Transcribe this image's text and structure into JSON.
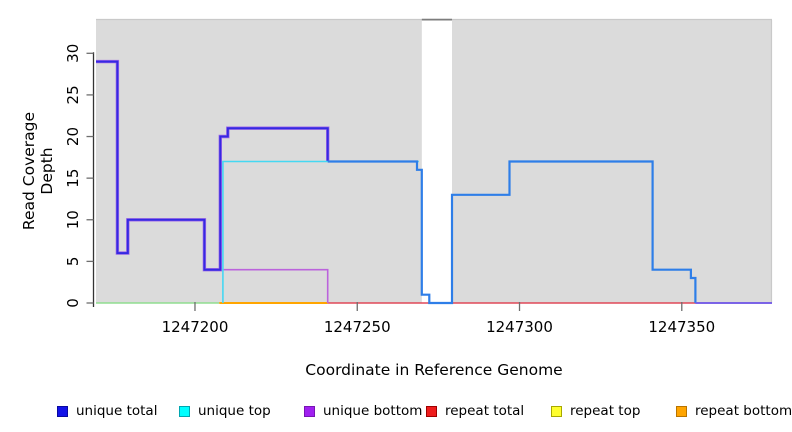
{
  "figure": {
    "background": "#ffffff"
  },
  "chart_data": {
    "type": "line",
    "subtype": "step-coverage",
    "title": "",
    "xlabel": "Coordinate in Reference Genome",
    "ylabel": "Read Coverage Depth",
    "xlim": [
      1247169.5,
      1247377.8
    ],
    "ylim": [
      0,
      34
    ],
    "xticks": [
      1247200,
      1247250,
      1247300,
      1247350
    ],
    "yticks": [
      0,
      5,
      10,
      15,
      20,
      25,
      30
    ],
    "grid": false,
    "panel_background": "#dbdbdb",
    "panel_border_color": "#c9c9c9",
    "axis_color": "#333333",
    "tick_color": "#6e6e6e",
    "gap_region": {
      "x_start": 1247269.9,
      "x_end": 1247279.2,
      "fill": "#ffffff",
      "cap_color": "#7d7d7d"
    },
    "legend_position": "bottom",
    "legend": [
      {
        "label": "unique total",
        "fill": "#1313e8",
        "border": "#0909a0"
      },
      {
        "label": "unique top",
        "fill": "#00ffff",
        "border": "#00a6b0"
      },
      {
        "label": "unique bottom",
        "fill": "#a020f0",
        "border": "#7714b4"
      },
      {
        "label": "repeat total",
        "fill": "#ee1c1c",
        "border": "#9e0000"
      },
      {
        "label": "repeat top",
        "fill": "#ffff2e",
        "border": "#a8a800"
      },
      {
        "label": "repeat bottom",
        "fill": "#ffa500",
        "border": "#b87400"
      }
    ],
    "series": [
      {
        "name": "zero-baseline-left-green",
        "color": "#90dd90",
        "width": 1.6,
        "points": [
          [
            1247169.5,
            0
          ],
          [
            1247207.5,
            0
          ]
        ]
      },
      {
        "name": "repeat-bottom-line",
        "color": "#ffa500",
        "width": 2,
        "points": [
          [
            1247207.5,
            0
          ],
          [
            1247240.9,
            0
          ]
        ]
      },
      {
        "name": "repeat-total-line",
        "color": "#e04858",
        "width": 1.6,
        "points": [
          [
            1247240.9,
            0
          ],
          [
            1247377.8,
            0
          ]
        ]
      },
      {
        "name": "unique-bottom-line",
        "color": "#bb63dc",
        "width": 1.6,
        "points": [
          [
            1247207.8,
            4
          ],
          [
            1247240.9,
            4
          ],
          [
            1247240.9,
            0
          ]
        ]
      },
      {
        "name": "unique-bottom-halo-under-total",
        "color": "#a06ae8",
        "width": 3.4,
        "points": [
          [
            1247169.5,
            29
          ],
          [
            1247176.1,
            29
          ],
          [
            1247176.1,
            6
          ],
          [
            1247179.3,
            6
          ],
          [
            1247179.3,
            10
          ],
          [
            1247202.9,
            10
          ],
          [
            1247202.9,
            4
          ],
          [
            1247207.8,
            4
          ],
          [
            1247207.8,
            20
          ],
          [
            1247210.1,
            20
          ],
          [
            1247210.1,
            21
          ],
          [
            1247240.9,
            21
          ],
          [
            1247240.9,
            17
          ]
        ]
      },
      {
        "name": "unique-total-left-line",
        "color": "#3529e2",
        "width": 2,
        "points": [
          [
            1247169.5,
            29
          ],
          [
            1247176.1,
            29
          ],
          [
            1247176.1,
            6
          ],
          [
            1247179.3,
            6
          ],
          [
            1247179.3,
            10
          ],
          [
            1247202.9,
            10
          ],
          [
            1247202.9,
            4
          ],
          [
            1247207.8,
            4
          ],
          [
            1247207.8,
            20
          ],
          [
            1247210.1,
            20
          ],
          [
            1247210.1,
            21
          ],
          [
            1247240.9,
            21
          ],
          [
            1247240.9,
            17
          ]
        ]
      },
      {
        "name": "unique-top-line",
        "color": "#45d8f2",
        "width": 1.6,
        "points": [
          [
            1247208.6,
            0
          ],
          [
            1247208.6,
            17
          ],
          [
            1247269,
            17
          ]
        ]
      },
      {
        "name": "coverage-right-blue-line",
        "color": "#2e7ee8",
        "width": 2.2,
        "points": [
          [
            1247240.9,
            17
          ],
          [
            1247268.4,
            17
          ],
          [
            1247268.4,
            16
          ],
          [
            1247269.9,
            16
          ],
          [
            1247269.9,
            1
          ],
          [
            1247272.2,
            1
          ],
          [
            1247272.2,
            0
          ],
          [
            1247279.2,
            0
          ],
          [
            1247279.2,
            13
          ],
          [
            1247296.9,
            13
          ],
          [
            1247296.9,
            17
          ],
          [
            1247341,
            17
          ],
          [
            1247341,
            4
          ],
          [
            1247352.8,
            4
          ],
          [
            1247352.8,
            3
          ],
          [
            1247354.2,
            3
          ],
          [
            1247354.2,
            0
          ]
        ]
      },
      {
        "name": "zero-right-violet-line",
        "color": "#6c5cf0",
        "width": 1.8,
        "points": [
          [
            1247354.2,
            0
          ],
          [
            1247377.8,
            0
          ]
        ]
      }
    ]
  }
}
